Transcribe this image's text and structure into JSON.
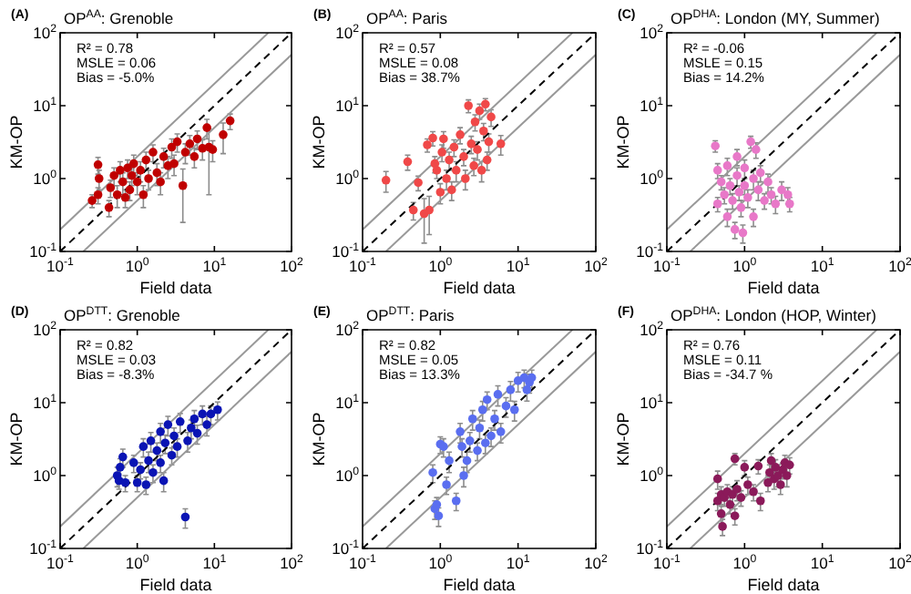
{
  "chart_data": [
    {
      "type": "scatter",
      "title": "OP$^{AA}$: Grenoble",
      "xlabel": "Field data",
      "ylabel": "KM-OP",
      "annotations": [
        "(A)",
        "R² = 0.78",
        "MSLE = 0.06",
        "Bias = -5.0%"
      ],
      "log": "xy",
      "xlim": [
        0.1,
        100
      ],
      "ylim": [
        0.1,
        100
      ],
      "xticks": [
        {
          "value": 0.1,
          "label": "10$^{-1}$"
        },
        {
          "value": 1,
          "label": "10$^{0}$"
        },
        {
          "value": 10,
          "label": "10$^{1}$"
        },
        {
          "value": 100,
          "label": "10$^{2}$"
        }
      ],
      "yticks": [
        {
          "value": 0.1,
          "label": "10$^{-1}$"
        },
        {
          "value": 1,
          "label": "10$^{0}$"
        },
        {
          "value": 10,
          "label": "10$^{1}$"
        },
        {
          "value": 100,
          "label": "10$^{2}$"
        }
      ],
      "grid": false,
      "series": [
        {
          "color": "#c00000",
          "marker": "circle",
          "x": [
            0.31,
            0.32,
            0.31,
            0.26,
            0.43,
            0.45,
            0.5,
            0.55,
            0.6,
            0.65,
            0.7,
            0.75,
            0.8,
            0.85,
            0.9,
            1.0,
            1.1,
            1.2,
            1.3,
            1.4,
            1.6,
            1.8,
            2.0,
            2.2,
            2.5,
            2.8,
            3.0,
            3.3,
            3.9,
            4.2,
            4.8,
            5.5,
            6.0,
            7.0,
            8.0,
            8.5,
            9.5,
            13,
            16
          ],
          "values": [
            1.55,
            1.0,
            0.6,
            0.5,
            0.4,
            0.75,
            1.1,
            0.6,
            1.3,
            0.9,
            0.55,
            1.4,
            0.7,
            1.1,
            1.6,
            0.9,
            1.3,
            0.6,
            1.8,
            1.0,
            2.3,
            1.2,
            0.9,
            2.0,
            1.5,
            2.7,
            1.6,
            3.2,
            0.8,
            2.3,
            3.0,
            2.0,
            3.5,
            2.6,
            5.0,
            2.7,
            2.5,
            4.0,
            6.2
          ],
          "errors": [
            0.4,
            0.3,
            0.15,
            0.1,
            0.1,
            0.2,
            0.3,
            0.2,
            0.4,
            0.3,
            0.15,
            0.4,
            0.2,
            0.3,
            0.5,
            0.3,
            0.4,
            0.2,
            0.5,
            0.3,
            0.6,
            0.4,
            0.3,
            0.6,
            0.5,
            0.8,
            0.5,
            0.9,
            0.55,
            0.7,
            0.9,
            0.6,
            1.0,
            0.8,
            1.5,
            2.1,
            0.8,
            1.8,
            1.5
          ]
        },
        {
          "type": "line",
          "color": "#000000",
          "line_style": "dashed",
          "marker": "none",
          "x": [
            0.1,
            100
          ],
          "values": [
            0.1,
            100
          ]
        },
        {
          "type": "line",
          "color": "#999999",
          "line_style": "solid",
          "marker": "none",
          "x": [
            0.1,
            50
          ],
          "values": [
            0.2,
            100
          ]
        },
        {
          "type": "line",
          "color": "#999999",
          "line_style": "solid",
          "marker": "none",
          "x": [
            0.2,
            100
          ],
          "values": [
            0.1,
            50
          ]
        }
      ]
    },
    {
      "type": "scatter",
      "title": "OP$^{AA}$: Paris",
      "xlabel": "Field data",
      "ylabel": "KM-OP",
      "annotations": [
        "(B)",
        "R² = 0.57",
        "MSLE = 0.08",
        "Bias = 38.7%"
      ],
      "log": "xy",
      "xlim": [
        0.1,
        100
      ],
      "ylim": [
        0.1,
        100
      ],
      "xticks": [
        {
          "value": 0.1,
          "label": "10$^{-1}$"
        },
        {
          "value": 1,
          "label": "10$^{0}$"
        },
        {
          "value": 10,
          "label": "10$^{1}$"
        },
        {
          "value": 100,
          "label": "10$^{2}$"
        }
      ],
      "yticks": [
        {
          "value": 0.1,
          "label": "10$^{-1}$"
        },
        {
          "value": 1,
          "label": "10$^{0}$"
        },
        {
          "value": 10,
          "label": "10$^{1}$"
        },
        {
          "value": 100,
          "label": "10$^{2}$"
        }
      ],
      "grid": false,
      "series": [
        {
          "color": "#f04848",
          "marker": "circle",
          "x": [
            0.2,
            0.38,
            0.52,
            0.45,
            0.62,
            0.72,
            0.68,
            0.8,
            0.85,
            0.9,
            1.0,
            1.05,
            1.1,
            1.2,
            1.3,
            1.4,
            1.5,
            1.6,
            1.8,
            2.0,
            2.1,
            2.3,
            2.5,
            2.7,
            2.8,
            3.0,
            3.2,
            3.4,
            3.6,
            3.8,
            4.0,
            4.2,
            4.5,
            6.0
          ],
          "values": [
            0.95,
            1.7,
            0.88,
            0.37,
            0.33,
            0.37,
            2.9,
            3.6,
            1.6,
            1.3,
            0.65,
            2.3,
            3.5,
            1.0,
            1.8,
            0.7,
            2.7,
            1.3,
            4.0,
            2.0,
            1.0,
            10,
            3.0,
            1.5,
            6.0,
            2.5,
            8.5,
            1.3,
            4.5,
            10.5,
            1.8,
            3.2,
            7,
            3.0
          ],
          "errors": [
            0.3,
            0.4,
            0.2,
            0.1,
            0.2,
            0.2,
            0.6,
            0.8,
            0.4,
            0.3,
            0.2,
            0.6,
            0.9,
            0.3,
            0.5,
            0.2,
            0.7,
            0.4,
            1.0,
            0.5,
            0.3,
            2.0,
            0.8,
            0.4,
            1.5,
            0.7,
            2.0,
            0.4,
            1.2,
            2.0,
            0.5,
            0.9,
            1.8,
            0.9
          ]
        },
        {
          "type": "line",
          "color": "#000000",
          "line_style": "dashed",
          "marker": "none",
          "x": [
            0.1,
            100
          ],
          "values": [
            0.1,
            100
          ]
        },
        {
          "type": "line",
          "color": "#999999",
          "line_style": "solid",
          "marker": "none",
          "x": [
            0.1,
            50
          ],
          "values": [
            0.2,
            100
          ]
        },
        {
          "type": "line",
          "color": "#999999",
          "line_style": "solid",
          "marker": "none",
          "x": [
            0.2,
            100
          ],
          "values": [
            0.1,
            50
          ]
        }
      ]
    },
    {
      "type": "scatter",
      "title": "OP$^{DHA}$: London (MY, Summer)",
      "xlabel": "Field data",
      "ylabel": "KM-OP",
      "annotations": [
        "(C)",
        "R² = -0.06",
        "MSLE = 0.15",
        "Bias = 14.2%"
      ],
      "log": "xy",
      "xlim": [
        0.1,
        100
      ],
      "ylim": [
        0.1,
        100
      ],
      "xticks": [
        {
          "value": 0.1,
          "label": "10$^{-1}$"
        },
        {
          "value": 1,
          "label": "10$^{0}$"
        },
        {
          "value": 10,
          "label": "10$^{1}$"
        },
        {
          "value": 100,
          "label": "10$^{2}$"
        }
      ],
      "yticks": [
        {
          "value": 0.1,
          "label": "10$^{-1}$"
        },
        {
          "value": 1,
          "label": "10$^{0}$"
        },
        {
          "value": 10,
          "label": "10$^{1}$"
        },
        {
          "value": 100,
          "label": "10$^{2}$"
        }
      ],
      "grid": false,
      "series": [
        {
          "color": "#e878c8",
          "marker": "circle",
          "x": [
            0.42,
            0.45,
            0.45,
            0.5,
            0.55,
            0.6,
            0.6,
            0.65,
            0.7,
            0.75,
            0.8,
            0.8,
            0.85,
            0.9,
            0.95,
            1.0,
            1.0,
            1.1,
            1.2,
            1.3,
            1.3,
            1.4,
            1.5,
            1.6,
            1.8,
            2.0,
            2.2,
            2.5,
            3.0,
            3.6,
            3.8
          ],
          "values": [
            2.8,
            1.3,
            0.45,
            0.9,
            0.6,
            1.5,
            0.3,
            0.8,
            0.5,
            0.2,
            1.1,
            2.0,
            0.65,
            0.4,
            0.18,
            1.4,
            0.8,
            0.55,
            3.2,
            1.0,
            0.3,
            2.5,
            0.7,
            1.2,
            0.5,
            0.9,
            0.6,
            0.45,
            0.7,
            0.6,
            0.45
          ],
          "errors": [
            0.5,
            0.3,
            0.1,
            0.2,
            0.15,
            0.4,
            0.08,
            0.2,
            0.12,
            0.05,
            0.3,
            0.5,
            0.15,
            0.1,
            0.05,
            0.4,
            0.2,
            0.15,
            0.6,
            0.3,
            0.08,
            0.6,
            0.2,
            0.3,
            0.12,
            0.25,
            0.15,
            0.12,
            0.2,
            0.15,
            0.1
          ]
        },
        {
          "type": "line",
          "color": "#000000",
          "line_style": "dashed",
          "marker": "none",
          "x": [
            0.1,
            100
          ],
          "values": [
            0.1,
            100
          ]
        },
        {
          "type": "line",
          "color": "#999999",
          "line_style": "solid",
          "marker": "none",
          "x": [
            0.1,
            50
          ],
          "values": [
            0.2,
            100
          ]
        },
        {
          "type": "line",
          "color": "#999999",
          "line_style": "solid",
          "marker": "none",
          "x": [
            0.2,
            100
          ],
          "values": [
            0.1,
            50
          ]
        }
      ]
    },
    {
      "type": "scatter",
      "title": "OP$^{DTT}$: Grenoble",
      "xlabel": "Field data",
      "ylabel": "KM-OP",
      "annotations": [
        "(D)",
        "R² = 0.82",
        "MSLE = 0.03",
        "Bias = -8.3%"
      ],
      "log": "xy",
      "xlim": [
        0.1,
        100
      ],
      "ylim": [
        0.1,
        100
      ],
      "xticks": [
        {
          "value": 0.1,
          "label": "10$^{-1}$"
        },
        {
          "value": 1,
          "label": "10$^{0}$"
        },
        {
          "value": 10,
          "label": "10$^{1}$"
        },
        {
          "value": 100,
          "label": "10$^{2}$"
        }
      ],
      "yticks": [
        {
          "value": 0.1,
          "label": "10$^{-1}$"
        },
        {
          "value": 1,
          "label": "10$^{0}$"
        },
        {
          "value": 10,
          "label": "10$^{1}$"
        },
        {
          "value": 100,
          "label": "10$^{2}$"
        }
      ],
      "grid": false,
      "series": [
        {
          "color": "#0a14b4",
          "marker": "circle",
          "x": [
            0.55,
            0.58,
            0.6,
            0.65,
            0.7,
            0.9,
            1.0,
            1.1,
            1.2,
            1.3,
            1.4,
            1.5,
            1.6,
            1.8,
            2.0,
            2.0,
            2.2,
            2.3,
            2.5,
            2.8,
            3.0,
            3.3,
            3.6,
            4.2,
            4.5,
            5,
            5.5,
            6,
            7,
            8,
            9,
            11
          ],
          "values": [
            1.0,
            0.85,
            1.3,
            1.8,
            0.8,
            1.5,
            0.8,
            1.2,
            2.5,
            0.75,
            1.6,
            3,
            1.1,
            2.2,
            4,
            1.5,
            0.85,
            2.8,
            5,
            1.9,
            3.5,
            2.5,
            5.5,
            0.27,
            3,
            4.5,
            6,
            3.8,
            7,
            5,
            7,
            8
          ],
          "errors": [
            0.3,
            0.2,
            0.4,
            0.5,
            0.2,
            0.4,
            0.2,
            0.3,
            0.7,
            0.2,
            0.5,
            0.9,
            0.3,
            0.6,
            1.2,
            0.4,
            0.25,
            0.8,
            1.5,
            0.5,
            1.0,
            0.7,
            1.6,
            0.08,
            0.9,
            1.3,
            1.8,
            1.1,
            2,
            1.5,
            2,
            2.2
          ]
        },
        {
          "type": "line",
          "color": "#000000",
          "line_style": "dashed",
          "marker": "none",
          "x": [
            0.1,
            100
          ],
          "values": [
            0.1,
            100
          ]
        },
        {
          "type": "line",
          "color": "#999999",
          "line_style": "solid",
          "marker": "none",
          "x": [
            0.1,
            50
          ],
          "values": [
            0.2,
            100
          ]
        },
        {
          "type": "line",
          "color": "#999999",
          "line_style": "solid",
          "marker": "none",
          "x": [
            0.2,
            100
          ],
          "values": [
            0.1,
            50
          ]
        }
      ]
    },
    {
      "type": "scatter",
      "title": "OP$^{DTT}$: Paris",
      "xlabel": "Field data",
      "ylabel": "KM-OP",
      "annotations": [
        "(E)",
        "R² = 0.82",
        "MSLE = 0.05",
        "Bias = 13.3%"
      ],
      "log": "xy",
      "xlim": [
        0.1,
        100
      ],
      "ylim": [
        0.1,
        100
      ],
      "xticks": [
        {
          "value": 0.1,
          "label": "10$^{-1}$"
        },
        {
          "value": 1,
          "label": "10$^{0}$"
        },
        {
          "value": 10,
          "label": "10$^{1}$"
        },
        {
          "value": 100,
          "label": "10$^{2}$"
        }
      ],
      "yticks": [
        {
          "value": 0.1,
          "label": "10$^{-1}$"
        },
        {
          "value": 1,
          "label": "10$^{0}$"
        },
        {
          "value": 10,
          "label": "10$^{1}$"
        },
        {
          "value": 100,
          "label": "10$^{2}$"
        }
      ],
      "grid": false,
      "series": [
        {
          "color": "#5a6ef0",
          "marker": "circle",
          "x": [
            0.8,
            0.85,
            0.9,
            0.95,
            1.0,
            1.1,
            1.2,
            1.3,
            1.6,
            1.8,
            1.9,
            2.0,
            2.2,
            2.4,
            2.6,
            3.0,
            3.2,
            3.5,
            3.8,
            4.0,
            4.5,
            5,
            5.5,
            6,
            7,
            8,
            9,
            10,
            12,
            13,
            14,
            15
          ],
          "values": [
            1.1,
            0.35,
            0.4,
            0.28,
            2.7,
            2.5,
            0.75,
            1.6,
            0.45,
            4,
            2.5,
            1.0,
            1.6,
            3.0,
            6,
            2.2,
            4.5,
            8,
            2.8,
            11,
            3.5,
            6,
            13,
            4,
            9,
            15,
            8,
            20,
            22,
            15,
            19,
            22
          ],
          "errors": [
            0.3,
            0.1,
            0.1,
            0.08,
            0.7,
            0.7,
            0.2,
            0.5,
            0.12,
            1.2,
            0.7,
            0.3,
            0.5,
            0.9,
            1.8,
            0.6,
            1.3,
            2.4,
            0.8,
            3,
            1.0,
            1.8,
            4,
            1.2,
            2.7,
            4.5,
            2.4,
            6,
            6,
            4.5,
            5.5,
            6
          ]
        },
        {
          "type": "line",
          "color": "#000000",
          "line_style": "dashed",
          "marker": "none",
          "x": [
            0.1,
            100
          ],
          "values": [
            0.1,
            100
          ]
        },
        {
          "type": "line",
          "color": "#999999",
          "line_style": "solid",
          "marker": "none",
          "x": [
            0.1,
            50
          ],
          "values": [
            0.2,
            100
          ]
        },
        {
          "type": "line",
          "color": "#999999",
          "line_style": "solid",
          "marker": "none",
          "x": [
            0.2,
            100
          ],
          "values": [
            0.1,
            50
          ]
        }
      ]
    },
    {
      "type": "scatter",
      "title": "OP$^{DHA}$: London (HOP, Winter)",
      "xlabel": "Field data",
      "ylabel": "KM-OP",
      "annotations": [
        "(F)",
        "R² = 0.76",
        "MSLE = 0.11",
        "Bias = -34.7 %"
      ],
      "log": "xy",
      "xlim": [
        0.1,
        100
      ],
      "ylim": [
        0.1,
        100
      ],
      "xticks": [
        {
          "value": 0.1,
          "label": "10$^{-1}$"
        },
        {
          "value": 1,
          "label": "10$^{0}$"
        },
        {
          "value": 10,
          "label": "10$^{1}$"
        },
        {
          "value": 100,
          "label": "10$^{2}$"
        }
      ],
      "yticks": [
        {
          "value": 0.1,
          "label": "10$^{-1}$"
        },
        {
          "value": 1,
          "label": "10$^{0}$"
        },
        {
          "value": 10,
          "label": "10$^{1}$"
        },
        {
          "value": 100,
          "label": "10$^{2}$"
        }
      ],
      "grid": false,
      "series": [
        {
          "color": "#8b1a5a",
          "marker": "circle",
          "x": [
            0.45,
            0.45,
            0.5,
            0.5,
            0.52,
            0.55,
            0.6,
            0.65,
            0.7,
            0.75,
            0.75,
            0.8,
            0.9,
            1.0,
            1.1,
            1.3,
            1.5,
            1.6,
            2.0,
            2.1,
            2.2,
            2.4,
            2.5,
            2.7,
            2.9,
            3.1,
            3.3,
            3.5,
            3.8
          ],
          "values": [
            0.9,
            0.45,
            0.3,
            0.55,
            0.2,
            0.5,
            0.6,
            0.4,
            0.55,
            1.7,
            0.28,
            0.65,
            0.5,
            1.3,
            0.75,
            0.6,
            1.35,
            0.45,
            0.8,
            1.1,
            1.6,
            0.9,
            1.3,
            1.0,
            0.75,
            1.2,
            1.5,
            1.0,
            1.4
          ],
          "errors": [
            0.25,
            0.12,
            0.08,
            0.15,
            0.05,
            0.12,
            0.15,
            0.1,
            0.15,
            0.3,
            0.07,
            0.2,
            0.12,
            0.3,
            0.2,
            0.15,
            0.3,
            0.12,
            0.2,
            0.3,
            0.4,
            0.25,
            0.35,
            0.3,
            0.2,
            0.3,
            0.4,
            0.3,
            0.35
          ]
        },
        {
          "type": "line",
          "color": "#000000",
          "line_style": "dashed",
          "marker": "none",
          "x": [
            0.1,
            100
          ],
          "values": [
            0.1,
            100
          ]
        },
        {
          "type": "line",
          "color": "#999999",
          "line_style": "solid",
          "marker": "none",
          "x": [
            0.1,
            50
          ],
          "values": [
            0.2,
            100
          ]
        },
        {
          "type": "line",
          "color": "#999999",
          "line_style": "solid",
          "marker": "none",
          "x": [
            0.2,
            100
          ],
          "values": [
            0.1,
            50
          ]
        }
      ]
    }
  ]
}
